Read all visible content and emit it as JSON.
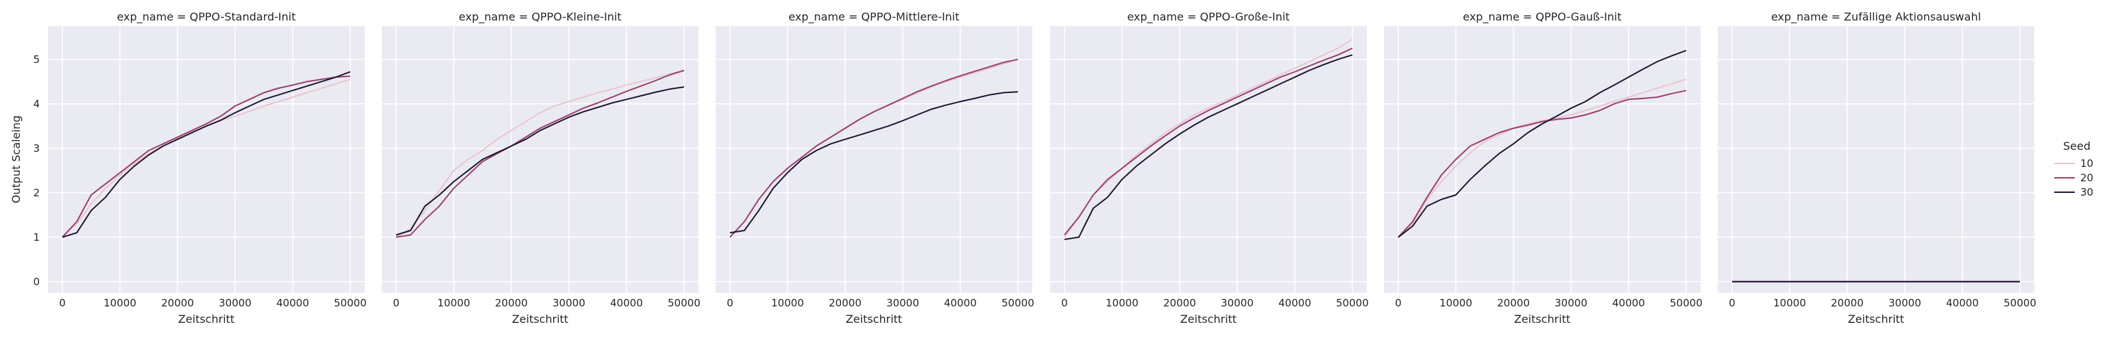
{
  "figure": {
    "ylabel": "Output Scaleing",
    "xlabel": "Zeitschritt",
    "legend_title": "Seed",
    "background_color": "#eaeaf2",
    "grid_color": "#ffffff",
    "grid": true,
    "legend_placement": "right"
  },
  "chart_data": [
    {
      "type": "line",
      "title": "exp_name = QPPO-Standard-Init",
      "xlabel": "Zeitschritt",
      "ylabel": "Output Scaleing",
      "xlim": [
        -2500,
        52500
      ],
      "ylim": [
        -0.25,
        5.75
      ],
      "xticks": [
        0,
        10000,
        20000,
        30000,
        40000,
        50000
      ],
      "yticks": [
        0,
        1,
        2,
        3,
        4,
        5
      ],
      "x": [
        0,
        2500,
        5000,
        7500,
        10000,
        12500,
        15000,
        17500,
        20000,
        22500,
        25000,
        27500,
        30000,
        32500,
        35000,
        37500,
        40000,
        42500,
        45000,
        47500,
        50000
      ],
      "series": [
        {
          "name": "10",
          "color": "#e8c6cf",
          "values": [
            1.02,
            1.3,
            1.75,
            2.1,
            2.4,
            2.65,
            2.88,
            3.05,
            3.22,
            3.36,
            3.5,
            3.62,
            3.72,
            3.83,
            3.95,
            4.05,
            4.15,
            4.25,
            4.35,
            4.45,
            4.55
          ]
        },
        {
          "name": "20",
          "color": "#9a3f6c",
          "values": [
            1.0,
            1.35,
            1.95,
            2.2,
            2.45,
            2.7,
            2.95,
            3.1,
            3.25,
            3.4,
            3.55,
            3.72,
            3.95,
            4.1,
            4.25,
            4.35,
            4.42,
            4.5,
            4.55,
            4.6,
            4.62
          ]
        },
        {
          "name": "30",
          "color": "#1e1433",
          "values": [
            1.0,
            1.1,
            1.6,
            1.9,
            2.3,
            2.6,
            2.85,
            3.05,
            3.2,
            3.35,
            3.5,
            3.63,
            3.8,
            3.95,
            4.1,
            4.2,
            4.3,
            4.4,
            4.5,
            4.6,
            4.72
          ]
        }
      ]
    },
    {
      "type": "line",
      "title": "exp_name = QPPO-Kleine-Init",
      "xlabel": "Zeitschritt",
      "ylabel": "",
      "xlim": [
        -2500,
        52500
      ],
      "ylim": [
        -0.25,
        5.75
      ],
      "xticks": [
        0,
        10000,
        20000,
        30000,
        40000,
        50000
      ],
      "yticks": [
        0,
        1,
        2,
        3,
        4,
        5
      ],
      "x": [
        0,
        2500,
        5000,
        7500,
        10000,
        12500,
        15000,
        17500,
        20000,
        22500,
        25000,
        27500,
        30000,
        32500,
        35000,
        37500,
        40000,
        42500,
        45000,
        47500,
        50000
      ],
      "series": [
        {
          "name": "10",
          "color": "#e8c6cf",
          "values": [
            1.0,
            1.2,
            1.6,
            2.05,
            2.5,
            2.75,
            2.95,
            3.2,
            3.4,
            3.6,
            3.8,
            3.95,
            4.05,
            4.15,
            4.25,
            4.33,
            4.42,
            4.5,
            4.58,
            4.67,
            4.75
          ]
        },
        {
          "name": "20",
          "color": "#9a3f6c",
          "values": [
            1.0,
            1.05,
            1.4,
            1.7,
            2.1,
            2.4,
            2.7,
            2.88,
            3.05,
            3.25,
            3.45,
            3.6,
            3.75,
            3.9,
            4.02,
            4.15,
            4.28,
            4.4,
            4.52,
            4.65,
            4.75
          ]
        },
        {
          "name": "30",
          "color": "#1e1433",
          "values": [
            1.05,
            1.15,
            1.7,
            1.95,
            2.25,
            2.5,
            2.75,
            2.9,
            3.05,
            3.2,
            3.4,
            3.55,
            3.7,
            3.82,
            3.92,
            4.02,
            4.1,
            4.18,
            4.26,
            4.33,
            4.38
          ]
        }
      ]
    },
    {
      "type": "line",
      "title": "exp_name = QPPO-Mittlere-Init",
      "xlabel": "Zeitschritt",
      "ylabel": "",
      "xlim": [
        -2500,
        52500
      ],
      "ylim": [
        -0.25,
        5.75
      ],
      "xticks": [
        0,
        10000,
        20000,
        30000,
        40000,
        50000
      ],
      "yticks": [
        0,
        1,
        2,
        3,
        4,
        5
      ],
      "x": [
        0,
        2500,
        5000,
        7500,
        10000,
        12500,
        15000,
        17500,
        20000,
        22500,
        25000,
        27500,
        30000,
        32500,
        35000,
        37500,
        40000,
        42500,
        45000,
        47500,
        50000
      ],
      "series": [
        {
          "name": "10",
          "color": "#e8c6cf",
          "values": [
            1.0,
            1.35,
            1.85,
            2.25,
            2.55,
            2.8,
            3.05,
            3.25,
            3.45,
            3.65,
            3.82,
            3.97,
            4.1,
            4.25,
            4.38,
            4.5,
            4.6,
            4.7,
            4.8,
            4.9,
            5.0
          ]
        },
        {
          "name": "20",
          "color": "#9a3f6c",
          "values": [
            1.0,
            1.35,
            1.85,
            2.25,
            2.55,
            2.8,
            3.05,
            3.25,
            3.45,
            3.65,
            3.82,
            3.97,
            4.12,
            4.27,
            4.4,
            4.52,
            4.63,
            4.73,
            4.83,
            4.93,
            5.0
          ]
        },
        {
          "name": "30",
          "color": "#1e1433",
          "values": [
            1.1,
            1.15,
            1.6,
            2.1,
            2.45,
            2.75,
            2.95,
            3.1,
            3.2,
            3.3,
            3.4,
            3.5,
            3.62,
            3.75,
            3.88,
            3.97,
            4.05,
            4.12,
            4.2,
            4.25,
            4.27
          ]
        }
      ]
    },
    {
      "type": "line",
      "title": "exp_name = QPPO-Große-Init",
      "xlabel": "Zeitschritt",
      "ylabel": "",
      "xlim": [
        -2500,
        52500
      ],
      "ylim": [
        -0.25,
        5.75
      ],
      "xticks": [
        0,
        10000,
        20000,
        30000,
        40000,
        50000
      ],
      "yticks": [
        0,
        1,
        2,
        3,
        4,
        5
      ],
      "x": [
        0,
        2500,
        5000,
        7500,
        10000,
        12500,
        15000,
        17500,
        20000,
        22500,
        25000,
        27500,
        30000,
        32500,
        35000,
        37500,
        40000,
        42500,
        45000,
        47500,
        50000
      ],
      "series": [
        {
          "name": "10",
          "color": "#e8c6cf",
          "values": [
            1.0,
            1.45,
            1.95,
            2.25,
            2.55,
            2.85,
            3.1,
            3.35,
            3.55,
            3.75,
            3.9,
            4.05,
            4.2,
            4.35,
            4.5,
            4.65,
            4.8,
            4.95,
            5.1,
            5.25,
            5.45
          ]
        },
        {
          "name": "20",
          "color": "#9a3f6c",
          "values": [
            1.05,
            1.45,
            1.95,
            2.3,
            2.55,
            2.8,
            3.05,
            3.28,
            3.5,
            3.68,
            3.85,
            4.0,
            4.15,
            4.3,
            4.45,
            4.6,
            4.72,
            4.85,
            4.98,
            5.1,
            5.25
          ]
        },
        {
          "name": "30",
          "color": "#1e1433",
          "values": [
            0.95,
            1.0,
            1.65,
            1.9,
            2.3,
            2.6,
            2.85,
            3.1,
            3.32,
            3.52,
            3.7,
            3.85,
            4.0,
            4.15,
            4.3,
            4.45,
            4.6,
            4.75,
            4.88,
            5.0,
            5.1
          ]
        }
      ]
    },
    {
      "type": "line",
      "title": "exp_name = QPPO-Gauß-Init",
      "xlabel": "Zeitschritt",
      "ylabel": "",
      "xlim": [
        -2500,
        52500
      ],
      "ylim": [
        -0.25,
        5.75
      ],
      "xticks": [
        0,
        10000,
        20000,
        30000,
        40000,
        50000
      ],
      "yticks": [
        0,
        1,
        2,
        3,
        4,
        5
      ],
      "x": [
        0,
        2500,
        5000,
        7500,
        10000,
        12500,
        15000,
        17500,
        20000,
        22500,
        25000,
        27500,
        30000,
        32500,
        35000,
        37500,
        40000,
        42500,
        45000,
        47500,
        50000
      ],
      "series": [
        {
          "name": "10",
          "color": "#e8c6cf",
          "values": [
            1.0,
            1.3,
            1.85,
            2.25,
            2.6,
            2.9,
            3.15,
            3.3,
            3.45,
            3.55,
            3.62,
            3.68,
            3.75,
            3.85,
            3.95,
            4.05,
            4.15,
            4.25,
            4.35,
            4.45,
            4.55
          ]
        },
        {
          "name": "20",
          "color": "#9a3f6c",
          "values": [
            1.0,
            1.35,
            1.9,
            2.4,
            2.75,
            3.05,
            3.2,
            3.35,
            3.45,
            3.52,
            3.6,
            3.65,
            3.68,
            3.75,
            3.85,
            4.0,
            4.1,
            4.12,
            4.15,
            4.23,
            4.3
          ]
        },
        {
          "name": "30",
          "color": "#1e1433",
          "values": [
            1.0,
            1.25,
            1.7,
            1.85,
            1.95,
            2.3,
            2.6,
            2.88,
            3.1,
            3.35,
            3.55,
            3.72,
            3.9,
            4.05,
            4.25,
            4.42,
            4.6,
            4.78,
            4.95,
            5.08,
            5.2
          ]
        }
      ]
    },
    {
      "type": "line",
      "title": "exp_name = Zufällige Aktionsauswahl",
      "xlabel": "Zeitschritt",
      "ylabel": "",
      "xlim": [
        -2500,
        52500
      ],
      "ylim": [
        -0.25,
        5.75
      ],
      "xticks": [
        0,
        10000,
        20000,
        30000,
        40000,
        50000
      ],
      "yticks": [
        0,
        1,
        2,
        3,
        4,
        5
      ],
      "x": [
        0,
        10000,
        20000,
        30000,
        40000,
        50000
      ],
      "series": [
        {
          "name": "10",
          "color": "#e8c6cf",
          "values": [
            0,
            0,
            0,
            0,
            0,
            0
          ]
        },
        {
          "name": "20",
          "color": "#9a3f6c",
          "values": [
            0,
            0,
            0,
            0,
            0,
            0
          ]
        },
        {
          "name": "30",
          "color": "#1e1433",
          "values": [
            0,
            0,
            0,
            0,
            0,
            0
          ]
        }
      ]
    }
  ],
  "legend": {
    "title": "Seed",
    "entries": [
      {
        "label": "10",
        "color": "#e8c6cf"
      },
      {
        "label": "20",
        "color": "#9a3f6c"
      },
      {
        "label": "30",
        "color": "#1e1433"
      }
    ]
  }
}
